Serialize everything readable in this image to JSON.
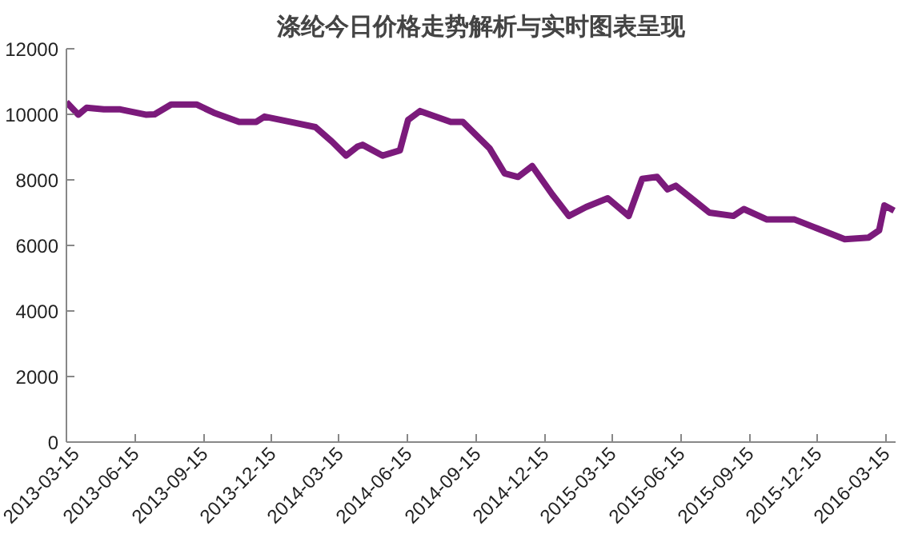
{
  "chart_data": {
    "type": "line",
    "title": "涤纶今日价格走势解析与实时图表呈现",
    "x": [
      "2013-03-15",
      "2013-03-31",
      "2013-04-11",
      "2013-05-04",
      "2013-05-26",
      "2013-06-29",
      "2013-07-11",
      "2013-08-02",
      "2013-09-05",
      "2013-09-28",
      "2013-11-01",
      "2013-11-24",
      "2013-12-05",
      "2014-01-08",
      "2014-02-11",
      "2014-03-05",
      "2014-03-24",
      "2014-04-08",
      "2014-04-15",
      "2014-05-12",
      "2014-06-04",
      "2014-06-15",
      "2014-07-01",
      "2014-08-11",
      "2014-08-27",
      "2014-10-02",
      "2014-10-22",
      "2014-11-09",
      "2014-11-28",
      "2014-12-25",
      "2015-01-16",
      "2015-02-08",
      "2015-03-09",
      "2015-04-06",
      "2015-04-24",
      "2015-05-14",
      "2015-05-28",
      "2015-06-08",
      "2015-07-23",
      "2015-08-24",
      "2015-09-07",
      "2015-10-08",
      "2015-11-14",
      "2015-12-15",
      "2016-01-20",
      "2016-02-21",
      "2016-03-06",
      "2016-03-13",
      "2016-03-26"
    ],
    "series": [
      {
        "color": "#7b1a7b",
        "values": [
          10370,
          9990,
          10200,
          10150,
          10150,
          9990,
          10000,
          10300,
          10300,
          10050,
          9770,
          9770,
          9930,
          9770,
          9610,
          9170,
          8740,
          9010,
          9070,
          8740,
          8900,
          9830,
          10100,
          9770,
          9770,
          8960,
          8200,
          8090,
          8420,
          7550,
          6900,
          7170,
          7440,
          6900,
          8030,
          8090,
          7710,
          7820,
          7000,
          6900,
          7110,
          6790,
          6790,
          6510,
          6190,
          6240,
          6460,
          7220,
          7060
        ]
      }
    ],
    "xlim": [
      "2013-03-15",
      "2016-03-28"
    ],
    "xticks": [
      "2013-03-15",
      "2013-06-15",
      "2013-09-15",
      "2013-12-15",
      "2014-03-15",
      "2014-06-15",
      "2014-09-15",
      "2014-12-15",
      "2015-03-15",
      "2015-06-15",
      "2015-09-15",
      "2015-12-15",
      "2016-03-15"
    ],
    "ylim": [
      0,
      12000
    ],
    "yticks": [
      0,
      2000,
      4000,
      6000,
      8000,
      10000,
      12000
    ],
    "grid": false,
    "marker": "none",
    "line_style": "solid"
  }
}
